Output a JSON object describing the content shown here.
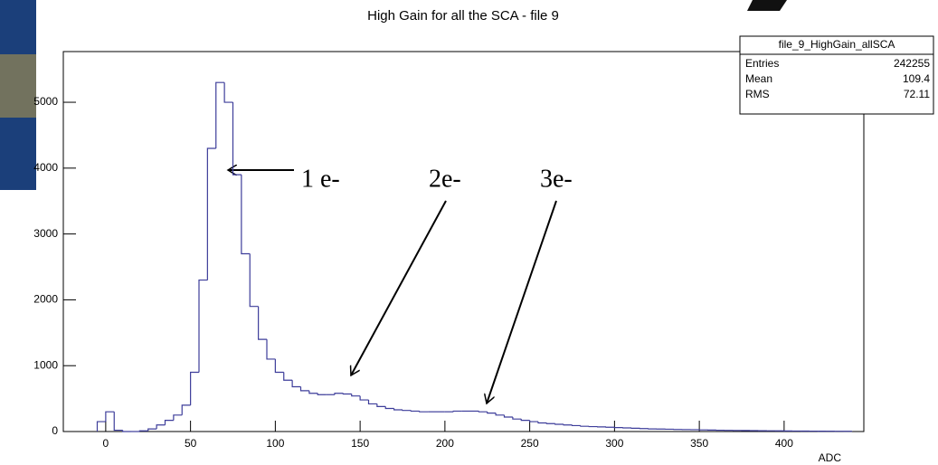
{
  "chart_data": {
    "type": "histogram",
    "title": "High Gain for all the SCA - file 9",
    "x_label": "ADC",
    "color": "#3d3d9a",
    "bins": [
      -5,
      0,
      5,
      10,
      15,
      20,
      25,
      30,
      35,
      40,
      45,
      50,
      55,
      60,
      65,
      70,
      75,
      80,
      85,
      90,
      95,
      100,
      105,
      110,
      115,
      120,
      125,
      130,
      135,
      140,
      145,
      150,
      155,
      160,
      165,
      170,
      175,
      180,
      185,
      190,
      195,
      200,
      205,
      210,
      215,
      220,
      225,
      230,
      235,
      240,
      245,
      250,
      255,
      260,
      265,
      270,
      275,
      280,
      285,
      290,
      295,
      300,
      305,
      310,
      315,
      320,
      325,
      330,
      335,
      340,
      345,
      350,
      355,
      360,
      365,
      370,
      375,
      380,
      385,
      390,
      395,
      400,
      405,
      410,
      415,
      420,
      425,
      430,
      435,
      440
    ],
    "values": [
      150,
      300,
      20,
      0,
      0,
      10,
      40,
      100,
      170,
      250,
      400,
      900,
      2300,
      4300,
      5300,
      5000,
      3900,
      2700,
      1900,
      1400,
      1100,
      900,
      780,
      680,
      620,
      580,
      560,
      560,
      580,
      570,
      540,
      480,
      420,
      380,
      350,
      330,
      320,
      310,
      300,
      300,
      300,
      300,
      310,
      310,
      310,
      300,
      280,
      250,
      220,
      190,
      170,
      150,
      130,
      120,
      110,
      100,
      90,
      80,
      75,
      70,
      65,
      60,
      55,
      50,
      45,
      40,
      38,
      35,
      32,
      30,
      28,
      25,
      22,
      20,
      18,
      16,
      15,
      14,
      12,
      11,
      10,
      9,
      8,
      7,
      6,
      5,
      5,
      4,
      4
    ],
    "xlim": [
      -25,
      447
    ],
    "ylim": [
      0,
      5770
    ],
    "xticks": [
      0,
      50,
      100,
      150,
      200,
      250,
      300,
      350,
      400
    ],
    "yticks": [
      0,
      1000,
      2000,
      3000,
      4000,
      5000
    ],
    "stats_box": {
      "title": "file_9_HighGain_allSCA",
      "rows": [
        {
          "label": "Entries",
          "value": 242255
        },
        {
          "label": "Mean",
          "value": 109.4
        },
        {
          "label": "RMS",
          "value": 72.11
        }
      ]
    },
    "annotations": [
      "1 e-",
      "2e-",
      "3e-"
    ]
  }
}
